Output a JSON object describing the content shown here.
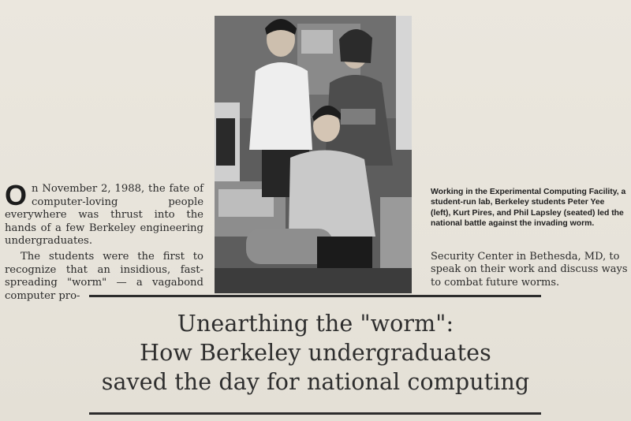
{
  "article": {
    "drop_cap": "O",
    "para1_rest": "n November 2, 1988, the fate of computer-loving people everywhere was thrust into the hands of a few Berkeley engineering undergraduates.",
    "para2": "The students were the first to recognize that an insidious, fast-spreading \"worm\" — a vagabond computer pro-"
  },
  "caption": "Working in the Experimental Computing Facility, a student-run lab, Berkeley students Peter Yee (left), Kurt Pires, and Phil Lapsley (seated) led the national battle against the invading worm.",
  "continuation": "Security Center in Bethesda, MD, to speak on their work and discuss ways to combat future worms.",
  "headline": {
    "line1": "Unearthing the \"worm\":",
    "line2": "How Berkeley undergraduates",
    "line3": "saved the day for national computing"
  }
}
